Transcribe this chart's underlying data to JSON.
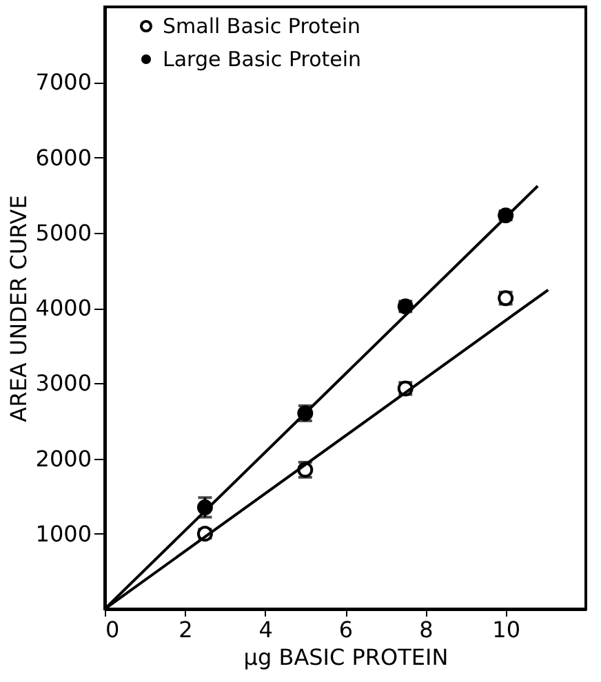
{
  "chart_data": {
    "type": "scatter",
    "xlabel": "μg BASIC PROTEIN",
    "ylabel": "AREA UNDER CURVE",
    "xlim": [
      0,
      12
    ],
    "ylim": [
      0,
      8000
    ],
    "xticks": [
      0,
      2,
      4,
      6,
      8,
      10
    ],
    "yticks": [
      1000,
      2000,
      3000,
      4000,
      5000,
      6000,
      7000
    ],
    "grid": false,
    "legend": "top",
    "marker": "circle",
    "series": [
      {
        "name": "Small Basic Protein",
        "color": "#000000",
        "x": [
          2.5,
          5,
          7.5,
          10
        ],
        "values": [
          1000,
          1850,
          2930,
          4130
        ],
        "errors": [
          60,
          100,
          80,
          80
        ]
      },
      {
        "name": "Large Basic Protein",
        "color": "#000000",
        "x": [
          2.5,
          5,
          7.5,
          10
        ],
        "values": [
          1350,
          2600,
          4020,
          5230
        ],
        "errors": [
          130,
          100,
          70,
          60
        ]
      },
      {
        "type": "line",
        "color": "#000000",
        "marker": "none",
        "line_style": "solid",
        "x": [
          0,
          11.06
        ],
        "values": [
          0,
          4240
        ]
      },
      {
        "type": "line",
        "color": "#000000",
        "marker": "none",
        "line_style": "solid",
        "x": [
          0,
          10.8
        ],
        "values": [
          0,
          5620
        ]
      }
    ]
  }
}
